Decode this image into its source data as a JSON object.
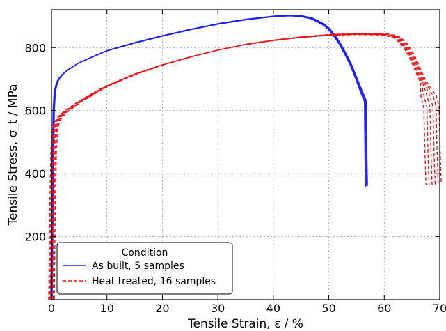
{
  "chart_data": {
    "type": "line",
    "title": "",
    "xlabel": "Tensile Strain, ε / %",
    "ylabel": "Tensile Stress, σ_t / MPa",
    "xlim": [
      0,
      70
    ],
    "ylim": [
      0,
      920
    ],
    "xticks": [
      0,
      10,
      20,
      30,
      40,
      50,
      60,
      70
    ],
    "yticks": [
      200,
      400,
      600,
      800
    ],
    "grid": true,
    "legend": {
      "title": "Condition",
      "placement": "bottom-left",
      "entries": [
        {
          "label": "As built, 5 samples",
          "color": "#1f1fff",
          "style": "solid"
        },
        {
          "label": "Heat treated, 16 samples",
          "color": "#e8141c",
          "style": "dashed"
        }
      ]
    },
    "series": [
      {
        "name": "As built, 5 samples",
        "color": "#1f1fff",
        "style": "solid",
        "samples": 5,
        "x": [
          0,
          0.2,
          0.4,
          0.6,
          1,
          1.5,
          2,
          3,
          5,
          8,
          10,
          15,
          20,
          25,
          30,
          35,
          40,
          43,
          45,
          47,
          49,
          50,
          51,
          52,
          53,
          54,
          55,
          56,
          56.6,
          56.7,
          56.8
        ],
        "y": [
          0,
          350,
          600,
          660,
          690,
          705,
          715,
          730,
          752,
          775,
          790,
          815,
          837,
          857,
          875,
          889,
          899,
          902,
          900,
          892,
          874,
          860,
          838,
          812,
          780,
          745,
          700,
          655,
          630,
          450,
          360
        ]
      },
      {
        "name": "Heat treated, 16 samples",
        "color": "#e8141c",
        "style": "dashed",
        "samples": 16,
        "x": [
          0,
          0.2,
          0.4,
          0.7,
          1,
          1.5,
          2,
          3,
          5,
          8,
          10,
          15,
          20,
          25,
          30,
          35,
          40,
          45,
          50,
          55,
          60,
          62,
          63,
          64,
          65,
          66,
          67,
          68,
          68.5,
          68.7,
          68.9
        ],
        "y": [
          0,
          300,
          480,
          545,
          565,
          578,
          588,
          602,
          627,
          658,
          678,
          715,
          745,
          770,
          792,
          810,
          823,
          833,
          840,
          843,
          842,
          835,
          822,
          802,
          772,
          732,
          692,
          645,
          612,
          470,
          365
        ]
      }
    ]
  }
}
